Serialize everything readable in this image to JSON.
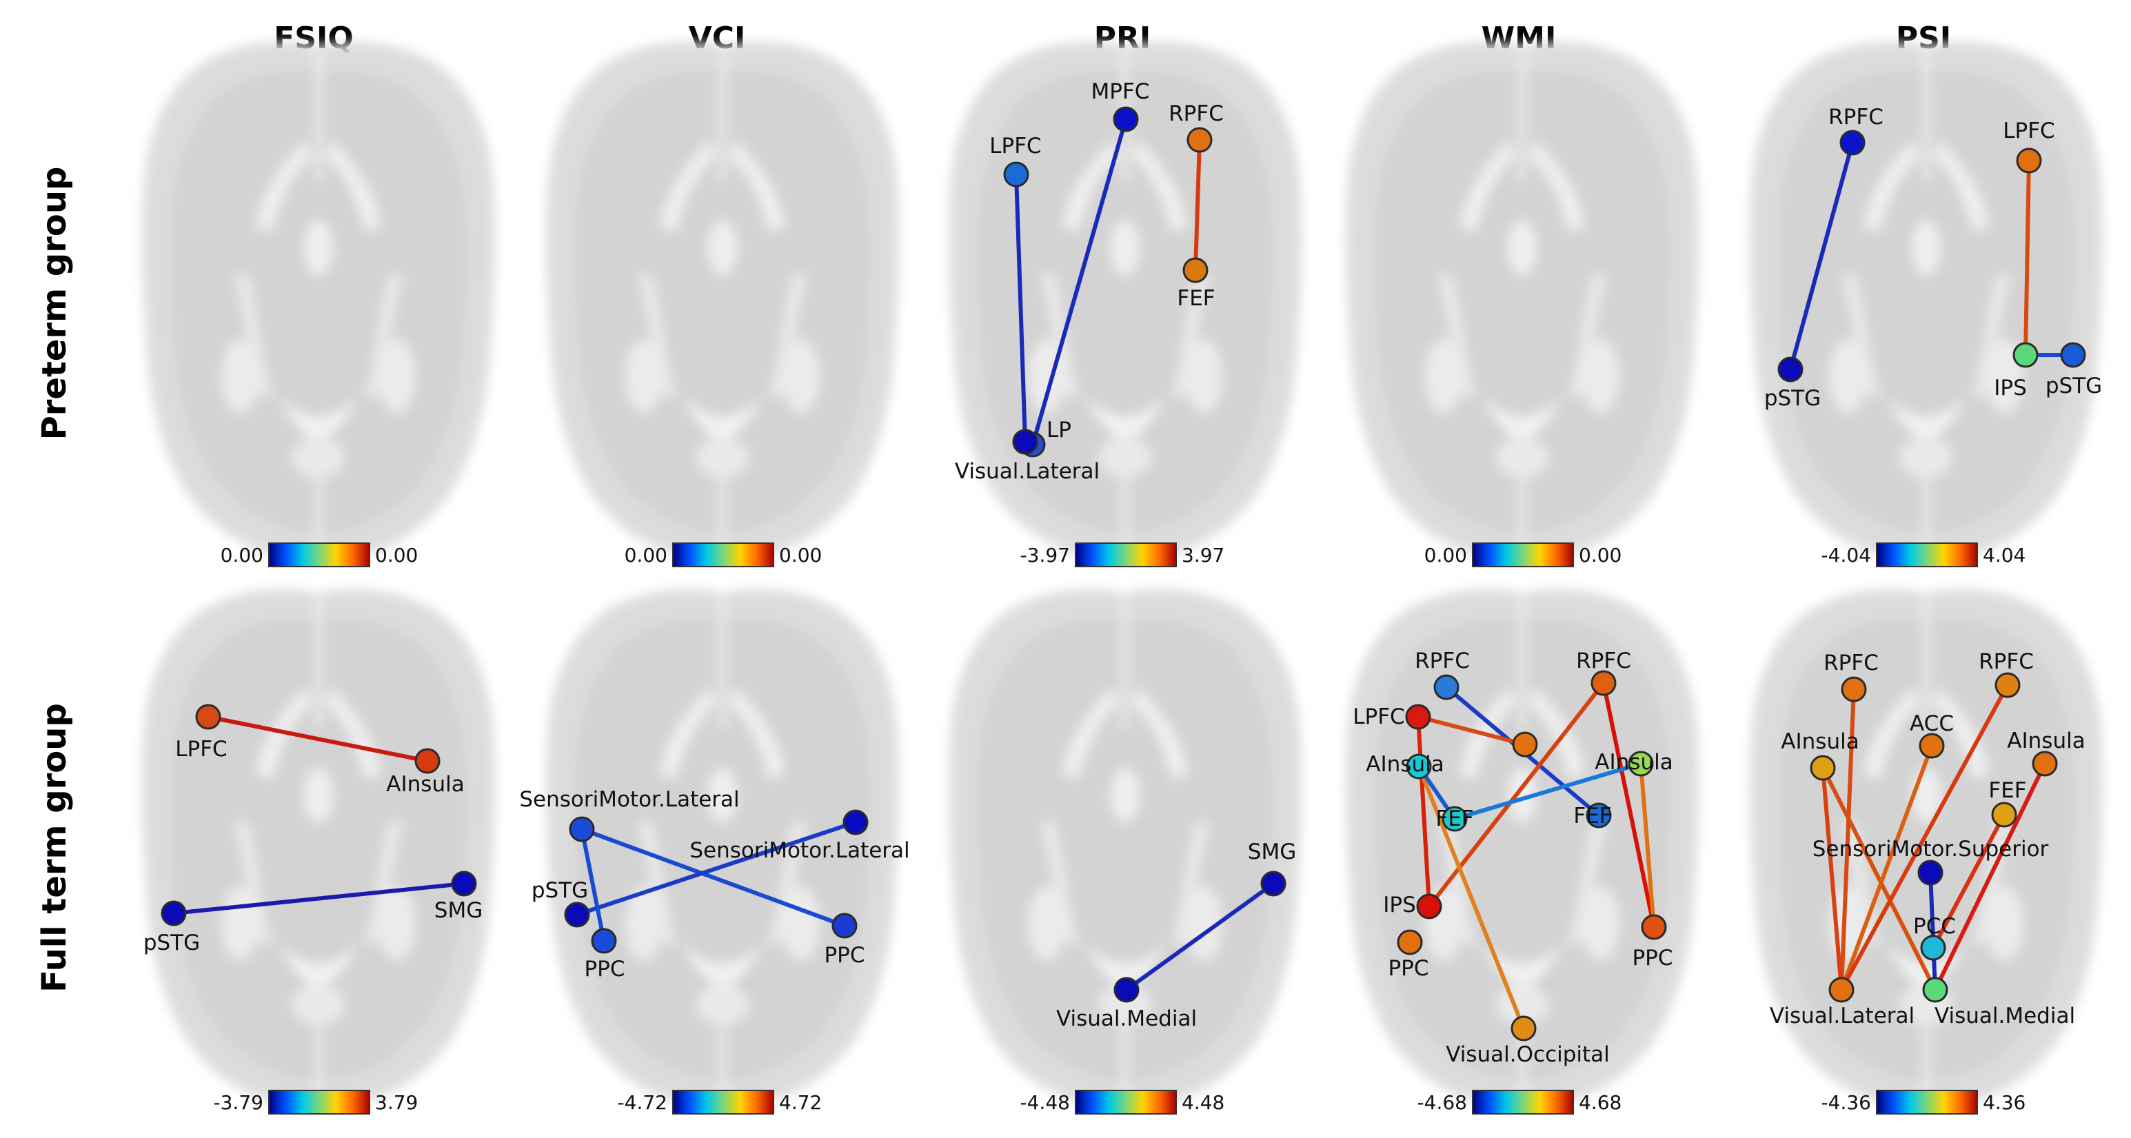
{
  "columns": [
    "FSIQ",
    "VCI",
    "PRI",
    "WMI",
    "PSI"
  ],
  "rows": [
    "Preterm group",
    "Full term group"
  ],
  "colorbar_palette": [
    "#00007f",
    "#0050ff",
    "#00c8e6",
    "#7ad67a",
    "#ffd400",
    "#ff6a00",
    "#a80000"
  ],
  "panels": [
    {
      "row": 0,
      "col": 0,
      "range": {
        "min": "0.00",
        "max": "0.00"
      },
      "nodes": [],
      "edges": []
    },
    {
      "row": 0,
      "col": 1,
      "range": {
        "min": "0.00",
        "max": "0.00"
      },
      "nodes": [],
      "edges": []
    },
    {
      "row": 0,
      "col": 2,
      "range": {
        "min": "-3.97",
        "max": "3.97"
      },
      "nodes": [
        {
          "id": "mpfc",
          "label": "MPFC",
          "color": "#0a10cc"
        },
        {
          "id": "rpfc",
          "label": "RPFC",
          "color": "#e07010"
        },
        {
          "id": "lpfc",
          "label": "LPFC",
          "color": "#1a6ad8"
        },
        {
          "id": "fef",
          "label": "FEF",
          "color": "#d8780e"
        },
        {
          "id": "lp",
          "label": "LP",
          "color": "#2a4ac8"
        },
        {
          "id": "vislat",
          "label": "Visual.Lateral",
          "color": "#0a0ab8"
        }
      ],
      "edges": [
        {
          "from": "lpfc",
          "to": "vislat",
          "color": "#1a2ab8"
        },
        {
          "from": "mpfc",
          "to": "lp",
          "color": "#1a2ab8"
        },
        {
          "from": "rpfc",
          "to": "fef",
          "color": "#d83a10"
        }
      ]
    },
    {
      "row": 0,
      "col": 3,
      "range": {
        "min": "0.00",
        "max": "0.00"
      },
      "nodes": [],
      "edges": []
    },
    {
      "row": 0,
      "col": 4,
      "range": {
        "min": "-4.04",
        "max": "4.04"
      },
      "nodes": [
        {
          "id": "rpfc",
          "label": "RPFC",
          "color": "#0a14c8"
        },
        {
          "id": "lpfc",
          "label": "LPFC",
          "color": "#e07010"
        },
        {
          "id": "pstgL",
          "label": "pSTG",
          "color": "#0a0ab8"
        },
        {
          "id": "ips",
          "label": "IPS",
          "color": "#5ad87a"
        },
        {
          "id": "pstgR",
          "label": "pSTG",
          "color": "#1a5ad8"
        }
      ],
      "edges": [
        {
          "from": "rpfc",
          "to": "pstgL",
          "color": "#1a2ab8"
        },
        {
          "from": "lpfc",
          "to": "ips",
          "color": "#d84a10"
        },
        {
          "from": "ips",
          "to": "pstgR",
          "color": "#1a4ad8"
        }
      ]
    },
    {
      "row": 1,
      "col": 0,
      "range": {
        "min": "-3.79",
        "max": "3.79"
      },
      "nodes": [
        {
          "id": "lpfc",
          "label": "LPFC",
          "color": "#d84a14"
        },
        {
          "id": "ainsula",
          "label": "AInsula",
          "color": "#d83a10"
        },
        {
          "id": "pstg",
          "label": "pSTG",
          "color": "#0a0ab8"
        },
        {
          "id": "smg",
          "label": "SMG",
          "color": "#0a0ab8"
        }
      ],
      "edges": [
        {
          "from": "lpfc",
          "to": "ainsula",
          "color": "#c81a10"
        },
        {
          "from": "pstg",
          "to": "smg",
          "color": "#1a1ab0"
        }
      ]
    },
    {
      "row": 1,
      "col": 1,
      "range": {
        "min": "-4.72",
        "max": "4.72"
      },
      "nodes": [
        {
          "id": "smlatL",
          "label": "SensoriMotor.Lateral",
          "color": "#1a4ad8"
        },
        {
          "id": "smlatR",
          "label": "SensoriMotor.Lateral",
          "color": "#0a0ac0"
        },
        {
          "id": "pstg",
          "label": "pSTG",
          "color": "#0a0ab8"
        },
        {
          "id": "ppcL",
          "label": "PPC",
          "color": "#1a4ad8"
        },
        {
          "id": "ppcR",
          "label": "PPC",
          "color": "#1a3ad0"
        }
      ],
      "edges": [
        {
          "from": "smlatL",
          "to": "ppcR",
          "color": "#1a4ad0"
        },
        {
          "from": "pstg",
          "to": "smlatR",
          "color": "#1a3ac8"
        },
        {
          "from": "smlatL",
          "to": "ppcL",
          "color": "#1a4ad0"
        }
      ]
    },
    {
      "row": 1,
      "col": 2,
      "range": {
        "min": "-4.48",
        "max": "4.48"
      },
      "nodes": [
        {
          "id": "smg",
          "label": "SMG",
          "color": "#0a0ab8"
        },
        {
          "id": "vismed",
          "label": "Visual.Medial",
          "color": "#0a0ab8"
        }
      ],
      "edges": [
        {
          "from": "vismed",
          "to": "smg",
          "color": "#1a2ab8"
        }
      ]
    },
    {
      "row": 1,
      "col": 3,
      "range": {
        "min": "-4.68",
        "max": "4.68"
      },
      "nodes": [
        {
          "id": "rpfcL",
          "label": "RPFC",
          "color": "#2a7ad8"
        },
        {
          "id": "rpfcR",
          "label": "RPFC",
          "color": "#e06010"
        },
        {
          "id": "lpfc",
          "label": "LPFC",
          "color": "#d81a10"
        },
        {
          "id": "mid",
          "label": "",
          "color": "#e07010"
        },
        {
          "id": "ainsL",
          "label": "AInsula",
          "color": "#18c8d8"
        },
        {
          "id": "ainsR",
          "label": "AInsula",
          "color": "#9ad850"
        },
        {
          "id": "fefL",
          "label": "FEF",
          "color": "#20c8c8"
        },
        {
          "id": "fefR",
          "label": "FEF",
          "color": "#1a6ad8"
        },
        {
          "id": "ips",
          "label": "IPS",
          "color": "#d8100a"
        },
        {
          "id": "ppcL",
          "label": "PPC",
          "color": "#e07010"
        },
        {
          "id": "ppcR",
          "label": "PPC",
          "color": "#e05010"
        },
        {
          "id": "visocc",
          "label": "Visual.Occipital",
          "color": "#e08c14"
        }
      ],
      "edges": [
        {
          "from": "rpfcL",
          "to": "fefR",
          "color": "#1a3ac8"
        },
        {
          "from": "lpfc",
          "to": "mid",
          "color": "#d84a14"
        },
        {
          "from": "lpfc",
          "to": "ips",
          "color": "#d8200a"
        },
        {
          "from": "rpfcR",
          "to": "ips",
          "color": "#d84010"
        },
        {
          "from": "rpfcR",
          "to": "ppcR",
          "color": "#d8100a"
        },
        {
          "from": "ainsR",
          "to": "ppcR",
          "color": "#e07010"
        },
        {
          "from": "ainsR",
          "to": "fefL",
          "color": "#1a7ad8"
        },
        {
          "from": "ainsL",
          "to": "visocc",
          "color": "#e08020"
        },
        {
          "from": "ainsL",
          "to": "fefL",
          "color": "#1a5ad0"
        }
      ]
    },
    {
      "row": 1,
      "col": 4,
      "range": {
        "min": "-4.36",
        "max": "4.36"
      },
      "nodes": [
        {
          "id": "rpfcL",
          "label": "RPFC",
          "color": "#e07010"
        },
        {
          "id": "rpfcR",
          "label": "RPFC",
          "color": "#e08010"
        },
        {
          "id": "acc",
          "label": "ACC",
          "color": "#e07010"
        },
        {
          "id": "ainsL",
          "label": "AInsula",
          "color": "#e0a014"
        },
        {
          "id": "ainsR",
          "label": "AInsula",
          "color": "#e07010"
        },
        {
          "id": "fef",
          "label": "FEF",
          "color": "#e0a014"
        },
        {
          "id": "sms",
          "label": "SensoriMotor.Superior",
          "color": "#0a0ab8"
        },
        {
          "id": "pcc",
          "label": "PCC",
          "color": "#20b8d8"
        },
        {
          "id": "vislat",
          "label": "Visual.Lateral",
          "color": "#e07010"
        },
        {
          "id": "vismed",
          "label": "Visual.Medial",
          "color": "#5ad87a"
        }
      ],
      "edges": [
        {
          "from": "rpfcL",
          "to": "vislat",
          "color": "#d84a10"
        },
        {
          "from": "ainsL",
          "to": "vismed",
          "color": "#d85010"
        },
        {
          "from": "ainsL",
          "to": "vislat",
          "color": "#d84010"
        },
        {
          "from": "acc",
          "to": "vislat",
          "color": "#d86010"
        },
        {
          "from": "rpfcR",
          "to": "vislat",
          "color": "#d83a10"
        },
        {
          "from": "ainsR",
          "to": "vismed",
          "color": "#d81a10"
        },
        {
          "from": "fef",
          "to": "pcc",
          "color": "#d83010"
        },
        {
          "from": "sms",
          "to": "vismed",
          "color": "#1a2ab8"
        }
      ]
    }
  ]
}
